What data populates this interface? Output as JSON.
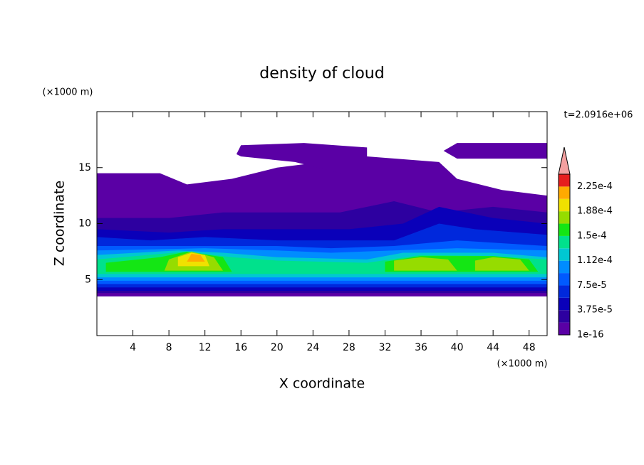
{
  "chart_data": {
    "type": "contour",
    "title": "density of cloud",
    "x_label": "X coordinate",
    "y_label": "Z coordinate",
    "x_unit": "(×1000 m)",
    "y_unit": "(×1000 m)",
    "time_label": "t=2.0916e+06",
    "xlim": [
      0,
      50
    ],
    "xticks": [
      4,
      8,
      12,
      16,
      20,
      24,
      28,
      32,
      36,
      40,
      44,
      48
    ],
    "ylim": [
      0,
      20
    ],
    "yticks": [
      5,
      10,
      15
    ],
    "colorbar": {
      "levels": [
        1e-16,
        1.875e-05,
        3.75e-05,
        5.625e-05,
        7.5e-05,
        9.375e-05,
        0.0001125,
        0.00013125,
        0.00015,
        0.00016875,
        0.0001875,
        0.00020625,
        0.000225,
        0.00024375
      ],
      "colors": [
        "#5a00a5",
        "#2d00a0",
        "#0a00b9",
        "#0028dc",
        "#005aff",
        "#008cff",
        "#00c8d2",
        "#00e18c",
        "#14e614",
        "#96dc00",
        "#f0e100",
        "#ffaa00",
        "#e61e1e"
      ],
      "extend_color": "#f4a0a0",
      "ticks": [
        1e-16,
        {
          "value": 3.75e-05,
          "label": "3.75e-5"
        },
        {
          "value": 7.5e-05,
          "label": "7.5e-5"
        },
        {
          "value": 0.0001125,
          "label": "1.12e-4"
        },
        {
          "value": 0.00015,
          "label": "1.5e-4"
        },
        {
          "value": 0.0001875,
          "label": "1.88e-4"
        },
        {
          "value": 0.000225,
          "label": "2.25e-4"
        }
      ]
    },
    "regions": [
      {
        "value": 1e-16,
        "x": [
          0,
          50,
          50,
          45,
          40,
          38,
          30,
          25,
          20,
          15,
          10,
          7,
          0
        ],
        "z": [
          3.5,
          3.5,
          12.5,
          13,
          14,
          15.5,
          16,
          15.5,
          15,
          14,
          13.5,
          14.5,
          14.5
        ]
      },
      {
        "value": 1e-16,
        "x": [
          15.5,
          16,
          23,
          30,
          30,
          27,
          22,
          16
        ],
        "z": [
          16.2,
          17,
          17.2,
          16.8,
          15,
          14.5,
          15.5,
          16
        ]
      },
      {
        "value": 1e-16,
        "x": [
          38.5,
          40,
          50,
          50,
          40
        ],
        "z": [
          16.5,
          17.2,
          17.2,
          15.8,
          15.8
        ]
      },
      {
        "value": 1.875e-05,
        "x": [
          0,
          50,
          50,
          44,
          38,
          33,
          27,
          20,
          14,
          8,
          0
        ],
        "z": [
          3.8,
          3.8,
          11,
          11.5,
          11,
          12,
          11,
          11,
          11,
          10.5,
          10.5
        ]
      },
      {
        "value": 3.75e-05,
        "x": [
          0,
          50,
          50,
          44,
          38,
          34,
          28,
          20,
          14,
          8,
          0
        ],
        "z": [
          4,
          4,
          10,
          10.5,
          11.5,
          10,
          9.5,
          9.5,
          9.5,
          9.2,
          9.5
        ]
      },
      {
        "value": 5.625e-05,
        "x": [
          0,
          50,
          50,
          42,
          38,
          33,
          26,
          20,
          12,
          6,
          0
        ],
        "z": [
          4.3,
          4.3,
          9,
          9.5,
          10,
          8.5,
          8.5,
          8.5,
          8.8,
          8.5,
          8.8
        ]
      },
      {
        "value": 7.5e-05,
        "x": [
          0,
          50,
          50,
          40,
          33,
          26,
          20,
          14,
          8,
          0
        ],
        "z": [
          4.6,
          4.6,
          8,
          8.5,
          8,
          7.8,
          8,
          8,
          8,
          8
        ]
      },
      {
        "value": 9.375e-05,
        "x": [
          0,
          50,
          50,
          40,
          33,
          26,
          20,
          12,
          0
        ],
        "z": [
          4.9,
          4.9,
          7.6,
          7.8,
          7.6,
          7.4,
          7.6,
          7.8,
          7.6
        ]
      },
      {
        "value": 0.0001125,
        "x": [
          0,
          50,
          50,
          44,
          34,
          30,
          20,
          14,
          9,
          0
        ],
        "z": [
          5.2,
          5.2,
          7,
          7.4,
          7.4,
          6.8,
          7,
          7.4,
          7.6,
          7.2
        ]
      },
      {
        "value": 0.00013125,
        "x": [
          0,
          50,
          50,
          44,
          36,
          30,
          20,
          15,
          10,
          0
        ],
        "z": [
          5.5,
          5.5,
          6.8,
          7.1,
          7.2,
          6.5,
          6.7,
          7,
          7.5,
          6.8
        ]
      },
      {
        "value": 0.00015,
        "x": [
          1,
          15,
          14,
          10,
          7,
          1
        ],
        "z": [
          5.7,
          5.7,
          7,
          7.5,
          7,
          6.5
        ]
      },
      {
        "value": 0.00015,
        "x": [
          32,
          49,
          48,
          44,
          36,
          32
        ],
        "z": [
          5.7,
          5.7,
          6.8,
          7.1,
          7.1,
          6.6
        ]
      },
      {
        "value": 0.00016875,
        "x": [
          7.5,
          14,
          13,
          10.5,
          8
        ],
        "z": [
          5.8,
          5.8,
          7,
          7.5,
          6.8
        ]
      },
      {
        "value": 0.00016875,
        "x": [
          33,
          40,
          39,
          36,
          33
        ],
        "z": [
          5.8,
          5.8,
          6.8,
          7,
          6.7
        ]
      },
      {
        "value": 0.00016875,
        "x": [
          42,
          48,
          47,
          44,
          42
        ],
        "z": [
          5.8,
          5.8,
          6.8,
          7,
          6.7
        ]
      },
      {
        "value": 0.0001875,
        "x": [
          9,
          12.5,
          12,
          10.5,
          9
        ],
        "z": [
          6.2,
          6.2,
          7.2,
          7.4,
          7
        ]
      },
      {
        "value": 0.00020625,
        "x": [
          10,
          12,
          11.5,
          10.5
        ],
        "z": [
          6.6,
          6.6,
          7.2,
          7.3
        ]
      }
    ]
  }
}
